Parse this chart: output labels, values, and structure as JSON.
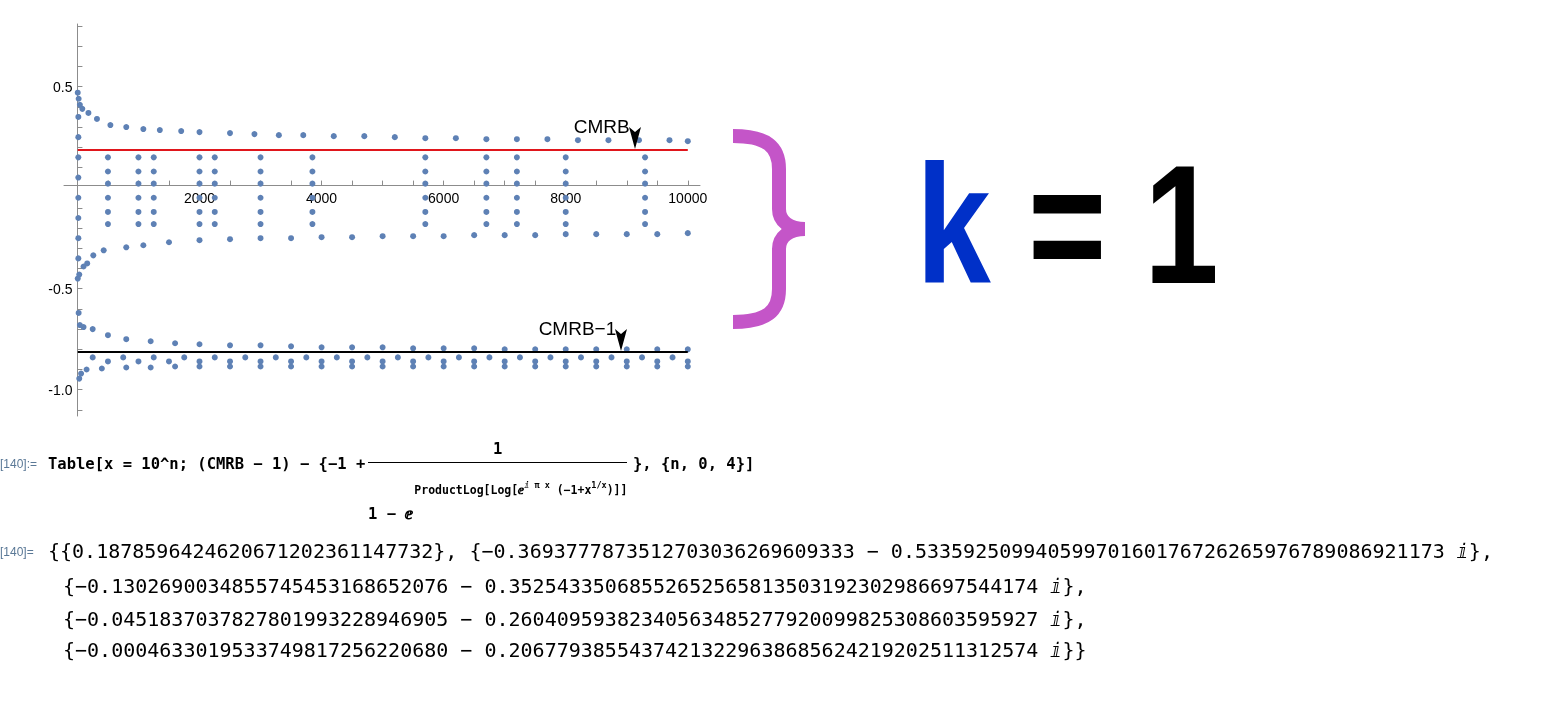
{
  "chart_data": {
    "type": "scatter",
    "color": "#5e81b5",
    "x": [
      5,
      20,
      40,
      80,
      180,
      320,
      540,
      800,
      1080,
      1350,
      1700,
      2000,
      2500,
      2900,
      3300,
      3700,
      4200,
      4700,
      5200,
      5700,
      6200,
      6700,
      7200,
      7700,
      8200,
      8700,
      9200,
      9700,
      10000,
      5,
      30,
      100,
      160,
      260,
      430,
      800,
      1080,
      1500,
      2000,
      2500,
      3000,
      3500,
      4000,
      4500,
      5000,
      5500,
      6000,
      6500,
      7000,
      7500,
      8000,
      8500,
      9000,
      9500,
      10000,
      15,
      15,
      15,
      15,
      15,
      15,
      15,
      15,
      500,
      500,
      500,
      500,
      500,
      500,
      1000,
      1000,
      1000,
      1000,
      1000,
      1000,
      1250,
      1250,
      1250,
      1250,
      1250,
      1250,
      2000,
      2000,
      2000,
      2000,
      2000,
      2000,
      2250,
      2250,
      2250,
      2250,
      2250,
      2250,
      3000,
      3000,
      3000,
      3000,
      3000,
      3000,
      3850,
      3850,
      3850,
      3850,
      3850,
      3850,
      5700,
      5700,
      5700,
      5700,
      5700,
      5700,
      6700,
      6700,
      6700,
      6700,
      6700,
      6700,
      7200,
      7200,
      7200,
      7200,
      7200,
      7200,
      8000,
      8000,
      8000,
      8000,
      8000,
      8000,
      9300,
      9300,
      9300,
      9300,
      9300,
      9300,
      20,
      40,
      100,
      250,
      500,
      800,
      1200,
      1600,
      2000,
      2500,
      3000,
      3500,
      4000,
      4500,
      5000,
      5500,
      6000,
      6500,
      7000,
      7500,
      8000,
      8500,
      9000,
      9500,
      10000,
      30,
      60,
      150,
      400,
      800,
      1200,
      1600,
      2000,
      2500,
      3000,
      3500,
      4000,
      4500,
      5000,
      5500,
      6000,
      6500,
      7000,
      7500,
      8000,
      8500,
      9000,
      9500,
      10000,
      250,
      750,
      1250,
      1750,
      2250,
      2750,
      3250,
      3750,
      4250,
      4750,
      5250,
      5750,
      6250,
      6750,
      7250,
      7750,
      8250,
      8750,
      9250,
      9750,
      500,
      1000,
      1500,
      2000,
      2500,
      3000,
      3500,
      4000,
      4500,
      5000,
      5500,
      6000,
      6500,
      7000,
      7500,
      8000,
      8500,
      9000,
      9500,
      10000
    ],
    "values": [
      0.47,
      0.44,
      0.41,
      0.39,
      0.37,
      0.34,
      0.31,
      0.3,
      0.29,
      0.285,
      0.28,
      0.275,
      0.27,
      0.265,
      0.26,
      0.26,
      0.255,
      0.255,
      0.25,
      0.245,
      0.245,
      0.24,
      0.24,
      0.24,
      0.235,
      0.235,
      0.235,
      0.235,
      0.23,
      -0.45,
      -0.43,
      -0.39,
      -0.375,
      -0.335,
      -0.31,
      -0.295,
      -0.285,
      -0.27,
      -0.26,
      -0.255,
      -0.25,
      -0.25,
      -0.245,
      -0.245,
      -0.24,
      -0.24,
      -0.24,
      -0.235,
      -0.235,
      -0.235,
      -0.23,
      -0.23,
      -0.23,
      -0.23,
      -0.225,
      0.35,
      0.25,
      0.15,
      0.05,
      -0.05,
      -0.15,
      -0.25,
      -0.35,
      0.15,
      0.08,
      0.02,
      -0.05,
      -0.12,
      -0.18,
      0.15,
      0.08,
      0.02,
      -0.05,
      -0.12,
      -0.18,
      0.15,
      0.08,
      0.02,
      -0.05,
      -0.12,
      -0.18,
      0.15,
      0.08,
      0.02,
      -0.05,
      -0.12,
      -0.18,
      0.15,
      0.08,
      0.02,
      -0.05,
      -0.12,
      -0.18,
      0.15,
      0.08,
      0.02,
      -0.05,
      -0.12,
      -0.18,
      0.15,
      0.08,
      0.02,
      -0.05,
      -0.12,
      -0.18,
      0.15,
      0.08,
      0.02,
      -0.05,
      -0.12,
      -0.18,
      0.15,
      0.08,
      0.02,
      -0.05,
      -0.12,
      -0.18,
      0.15,
      0.08,
      0.02,
      -0.05,
      -0.12,
      -0.18,
      0.15,
      0.08,
      0.02,
      -0.05,
      -0.12,
      -0.18,
      0.15,
      0.08,
      0.02,
      -0.05,
      -0.12,
      -0.18,
      -0.62,
      -0.68,
      -0.69,
      -0.7,
      -0.73,
      -0.75,
      -0.76,
      -0.77,
      -0.775,
      -0.78,
      -0.78,
      -0.785,
      -0.79,
      -0.79,
      -0.79,
      -0.795,
      -0.795,
      -0.795,
      -0.8,
      -0.8,
      -0.8,
      -0.8,
      -0.8,
      -0.8,
      -0.8,
      -0.945,
      -0.92,
      -0.9,
      -0.895,
      -0.89,
      -0.89,
      -0.885,
      -0.885,
      -0.885,
      -0.885,
      -0.885,
      -0.885,
      -0.885,
      -0.885,
      -0.885,
      -0.885,
      -0.885,
      -0.885,
      -0.885,
      -0.885,
      -0.885,
      -0.885,
      -0.885,
      -0.885,
      -0.84,
      -0.84,
      -0.84,
      -0.84,
      -0.84,
      -0.84,
      -0.84,
      -0.84,
      -0.84,
      -0.84,
      -0.84,
      -0.84,
      -0.84,
      -0.84,
      -0.84,
      -0.84,
      -0.84,
      -0.84,
      -0.84,
      -0.84,
      -0.86,
      -0.86,
      -0.86,
      -0.86,
      -0.86,
      -0.86,
      -0.86,
      -0.86,
      -0.86,
      -0.86,
      -0.86,
      -0.86,
      -0.86,
      -0.86,
      -0.86,
      -0.86,
      -0.86,
      -0.86,
      -0.86,
      -0.86
    ],
    "xlim": [
      -220,
      10200
    ],
    "ylim": [
      -1.13,
      0.81
    ],
    "xticks": [
      {
        "value": 500,
        "label": null
      },
      {
        "value": 1000,
        "label": null
      },
      {
        "value": 1500,
        "label": null
      },
      2000,
      {
        "value": 2500,
        "label": null
      },
      {
        "value": 3000,
        "label": null
      },
      {
        "value": 3500,
        "label": null
      },
      4000,
      {
        "value": 4500,
        "label": null
      },
      {
        "value": 5000,
        "label": null
      },
      {
        "value": 5500,
        "label": null
      },
      6000,
      {
        "value": 6500,
        "label": null
      },
      {
        "value": 7000,
        "label": null
      },
      {
        "value": 7500,
        "label": null
      },
      8000,
      {
        "value": 8500,
        "label": null
      },
      {
        "value": 9000,
        "label": null
      },
      {
        "value": 9500,
        "label": null
      },
      10000
    ],
    "yticks": [
      {
        "value": -1.1,
        "label": null
      },
      {
        "value": -1,
        "label": "-1.0"
      },
      {
        "value": -0.9,
        "label": null
      },
      {
        "value": -0.8,
        "label": null
      },
      {
        "value": -0.7,
        "label": null
      },
      {
        "value": -0.6,
        "label": null
      },
      -0.5,
      {
        "value": -0.4,
        "label": null
      },
      {
        "value": -0.3,
        "label": null
      },
      {
        "value": -0.2,
        "label": null
      },
      {
        "value": -0.1,
        "label": null
      },
      {
        "value": 0.1,
        "label": null
      },
      {
        "value": 0.2,
        "label": null
      },
      {
        "value": 0.3,
        "label": null
      },
      {
        "value": 0.4,
        "label": null
      },
      0.5,
      {
        "value": 0.6,
        "label": null
      },
      {
        "value": 0.7,
        "label": null
      },
      {
        "value": 0.8,
        "label": null
      }
    ],
    "marker": "circle",
    "ref_lines": [
      {
        "axis": "y",
        "value": 0.188,
        "color": "#e0161c"
      },
      {
        "axis": "y",
        "value": -0.812,
        "color": "#000000"
      }
    ],
    "annotations": [
      {
        "text": "CMRB",
        "x": 9130,
        "y": 0.188
      },
      {
        "text": "CMRB−1",
        "x": 8910,
        "y": -0.812
      },
      "k = 1",
      "[140]:=",
      "Table[x = 10^n; (CMRB − 1) − {−1 +",
      "1",
      "1 − ⅇ",
      "ProductLog[Log[ⅇ$^{ⅈ π x}$ (−1+x$^{1/x}$)]]",
      "}, {n, 0, 4}]",
      "[140]=",
      "{{0.1878596424620671202361147732}, {−0.3693777873512703036269609333 − 0.53359250994059970160176726265976789086921173 ⅈ},",
      "{−0.1302690034855745453168652076 − 0.35254335068552652565813503192302986697544174 ⅈ},",
      "{−0.0451837037827801993228946905 − 0.26040959382340563485277920099825308603595927 ⅈ},",
      "{−0.0004633019533749817256220680 − 0.20677938554374213229638685624219202511312574 ⅈ}}"
    ]
  }
}
